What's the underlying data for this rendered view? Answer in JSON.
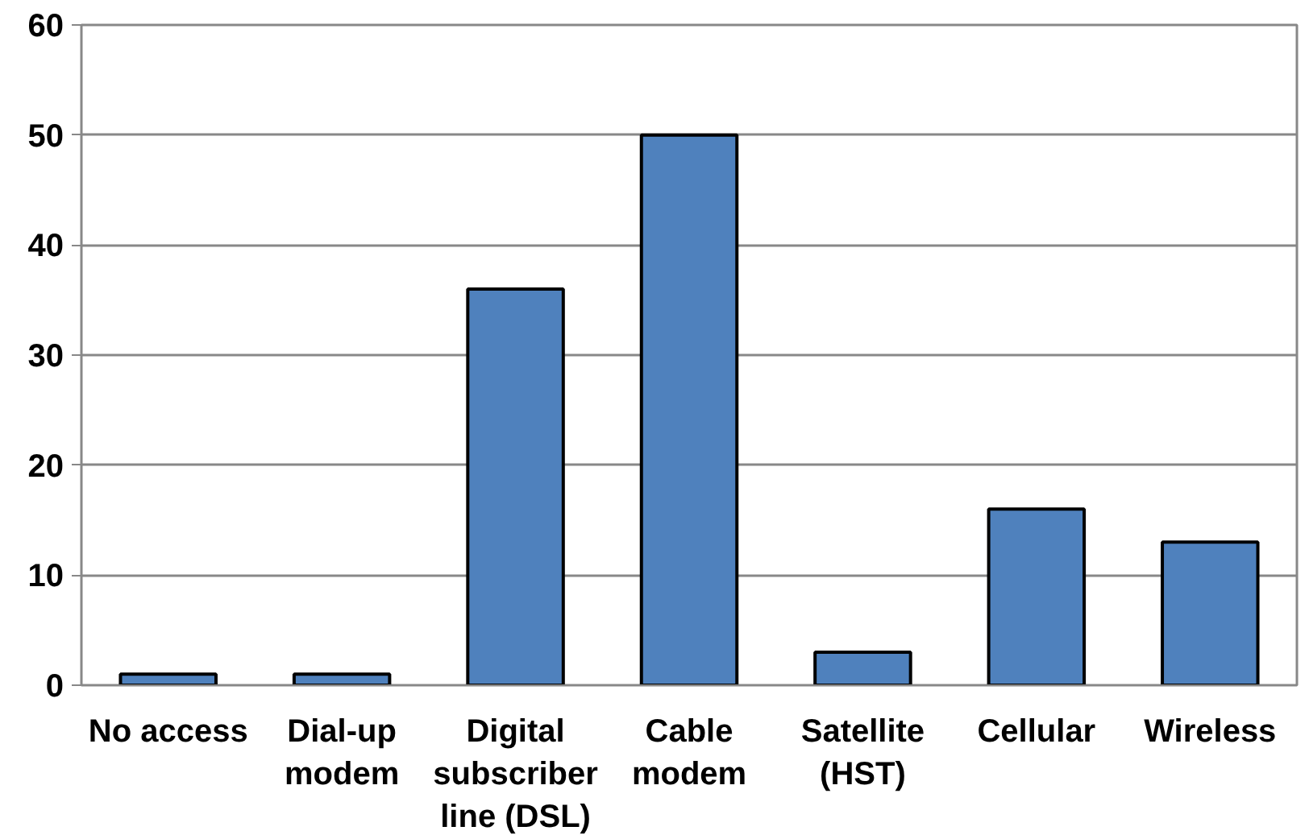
{
  "chart_data": {
    "type": "bar",
    "categories": [
      "No access",
      "Dial-up\nmodem",
      "Digital\nsubscriber\nline (DSL)",
      "Cable\nmodem",
      "Satellite\n(HST)",
      "Cellular",
      "Wireless"
    ],
    "values": [
      1,
      1,
      36,
      50,
      3,
      16,
      13
    ],
    "color": "#4f81bd",
    "ylim": [
      0,
      60
    ],
    "yticks": [
      0,
      10,
      20,
      30,
      40,
      50,
      60
    ],
    "grid": "y"
  }
}
